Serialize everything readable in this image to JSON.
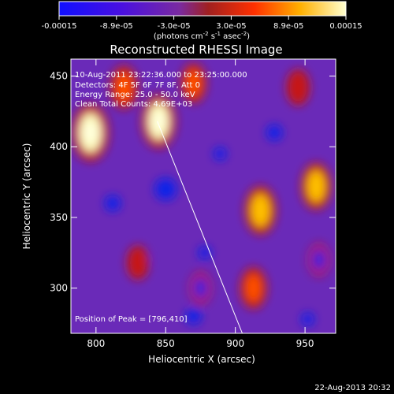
{
  "chart_data": {
    "type": "heatmap",
    "title": "Reconstructed RHESSI Image",
    "xlabel": "Heliocentric X (arcsec)",
    "ylabel": "Heliocentric Y (arcsec)",
    "xlim": [
      782,
      972
    ],
    "ylim": [
      268,
      462
    ],
    "x_ticks": [
      "800",
      "850",
      "900",
      "950"
    ],
    "y_ticks": [
      "300",
      "350",
      "400",
      "450"
    ],
    "colorbar": {
      "tick_labels": [
        "-0.00015",
        "-8.9e-05",
        "-3.0e-05",
        "3.0e-05",
        "8.9e-05",
        "0.00015"
      ],
      "label_main": "(photons cm",
      "label_sup1": "-2",
      "label_mid1": " s",
      "label_sup2": "-1",
      "label_mid2": " asec",
      "label_sup3": "-2",
      "label_end": ")",
      "range": [
        -0.00015,
        0.00015
      ]
    },
    "info_lines": [
      "10-Aug-2011 23:22:36.000 to 23:25:00.000",
      "Detectors: 4F 5F 6F 7F 8F, Att 0",
      "Energy Range: 25.0 - 50.0 keV",
      "Clean    Total Counts: 4.69E+03"
    ],
    "peak_label": "Position of Peak = [796,410]",
    "peak_position": [
      796,
      410
    ],
    "limb_line": [
      [
        844,
        418
      ],
      [
        905,
        268
      ]
    ],
    "bright_sources": [
      {
        "x": 796,
        "y": 410,
        "level": 1.0
      },
      {
        "x": 845,
        "y": 418,
        "level": 0.9
      },
      {
        "x": 820,
        "y": 442,
        "level": 0.6
      },
      {
        "x": 870,
        "y": 445,
        "level": 0.5
      },
      {
        "x": 918,
        "y": 355,
        "level": 0.75
      },
      {
        "x": 913,
        "y": 300,
        "level": 0.55
      },
      {
        "x": 958,
        "y": 372,
        "level": 0.7
      },
      {
        "x": 830,
        "y": 318,
        "level": 0.35
      },
      {
        "x": 875,
        "y": 300,
        "level": 0.3
      },
      {
        "x": 945,
        "y": 442,
        "level": 0.4
      },
      {
        "x": 960,
        "y": 320,
        "level": 0.3
      }
    ],
    "grid": false
  },
  "footer": {
    "date": "22-Aug-2013 20:32"
  }
}
